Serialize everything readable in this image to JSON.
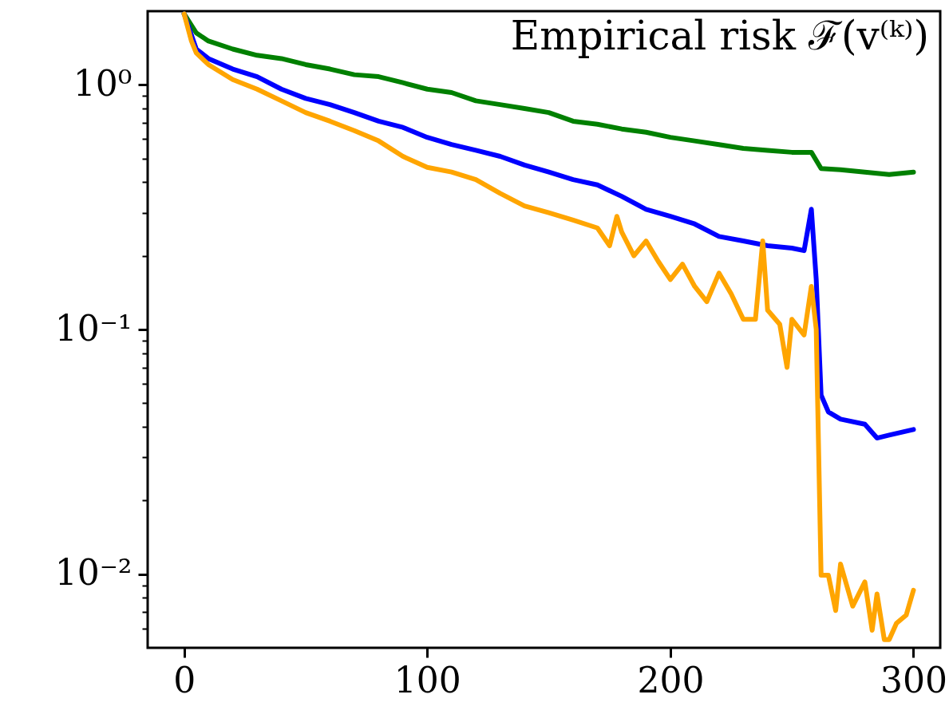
{
  "chart_data": {
    "type": "line",
    "annotations": [
      "Empirical risk ℱ(v⁽ᵏ⁾)"
    ],
    "log": "y",
    "xlim": [
      -15,
      311
    ],
    "ylim": [
      0.005,
      2
    ],
    "xticks": [
      0,
      100,
      200,
      300
    ],
    "yticks": [
      {
        "value": 1,
        "label": "10⁰"
      },
      {
        "value": 0.1,
        "label": "10⁻¹"
      },
      {
        "value": 0.01,
        "label": "10⁻²"
      },
      {
        "value": 0.9,
        "label": null
      },
      {
        "value": 0.8,
        "label": null
      },
      {
        "value": 0.7,
        "label": null
      },
      {
        "value": 0.6,
        "label": null
      },
      {
        "value": 0.5,
        "label": null
      },
      {
        "value": 0.4,
        "label": null
      },
      {
        "value": 0.3,
        "label": null
      },
      {
        "value": 0.2,
        "label": null
      },
      {
        "value": 0.09,
        "label": null
      },
      {
        "value": 0.08,
        "label": null
      },
      {
        "value": 0.07,
        "label": null
      },
      {
        "value": 0.06,
        "label": null
      },
      {
        "value": 0.05,
        "label": null
      },
      {
        "value": 0.04,
        "label": null
      },
      {
        "value": 0.03,
        "label": null
      },
      {
        "value": 0.02,
        "label": null
      },
      {
        "value": 0.009,
        "label": null
      },
      {
        "value": 0.008,
        "label": null
      },
      {
        "value": 0.007,
        "label": null
      },
      {
        "value": 0.006,
        "label": null
      }
    ],
    "grid": false,
    "line_style": "solid",
    "marker": "none",
    "series": [
      {
        "color": "#008000",
        "x": [
          0,
          5,
          10,
          20,
          30,
          40,
          50,
          60,
          70,
          80,
          90,
          100,
          110,
          120,
          130,
          140,
          150,
          160,
          170,
          180,
          190,
          200,
          210,
          220,
          230,
          240,
          250,
          258,
          262,
          270,
          280,
          290,
          300
        ],
        "values": [
          1.95,
          1.63,
          1.51,
          1.4,
          1.32,
          1.28,
          1.21,
          1.16,
          1.1,
          1.08,
          1.02,
          0.96,
          0.93,
          0.86,
          0.83,
          0.8,
          0.77,
          0.71,
          0.69,
          0.66,
          0.64,
          0.61,
          0.59,
          0.57,
          0.55,
          0.54,
          0.53,
          0.53,
          0.455,
          0.45,
          0.44,
          0.43,
          0.44
        ]
      },
      {
        "color": "#0000ff",
        "x": [
          0,
          5,
          10,
          20,
          30,
          40,
          50,
          60,
          70,
          80,
          90,
          100,
          110,
          120,
          130,
          140,
          150,
          160,
          170,
          180,
          190,
          200,
          210,
          220,
          230,
          240,
          250,
          255,
          258,
          260,
          262,
          265,
          270,
          280,
          285,
          290,
          300
        ],
        "values": [
          1.95,
          1.4,
          1.28,
          1.16,
          1.08,
          0.96,
          0.88,
          0.83,
          0.77,
          0.71,
          0.67,
          0.61,
          0.57,
          0.54,
          0.51,
          0.47,
          0.44,
          0.41,
          0.39,
          0.35,
          0.31,
          0.29,
          0.27,
          0.24,
          0.23,
          0.22,
          0.215,
          0.21,
          0.31,
          0.16,
          0.054,
          0.046,
          0.043,
          0.041,
          0.036,
          0.037,
          0.039
        ]
      },
      {
        "color": "#ffa500",
        "x": [
          0,
          3,
          5,
          10,
          20,
          30,
          40,
          50,
          60,
          70,
          80,
          90,
          100,
          110,
          120,
          130,
          140,
          150,
          160,
          170,
          175,
          178,
          180,
          185,
          190,
          195,
          200,
          205,
          210,
          215,
          220,
          225,
          230,
          235,
          238,
          240,
          245,
          248,
          250,
          255,
          258,
          260,
          262,
          265,
          268,
          270,
          275,
          280,
          283,
          285,
          288,
          290,
          293,
          297,
          300
        ],
        "values": [
          1.95,
          1.51,
          1.35,
          1.21,
          1.05,
          0.96,
          0.86,
          0.77,
          0.71,
          0.65,
          0.59,
          0.51,
          0.46,
          0.44,
          0.41,
          0.36,
          0.32,
          0.3,
          0.28,
          0.26,
          0.22,
          0.29,
          0.25,
          0.2,
          0.23,
          0.19,
          0.16,
          0.185,
          0.15,
          0.13,
          0.17,
          0.14,
          0.11,
          0.11,
          0.23,
          0.12,
          0.105,
          0.07,
          0.11,
          0.095,
          0.15,
          0.1,
          0.0099,
          0.0099,
          0.0071,
          0.011,
          0.0074,
          0.0093,
          0.0059,
          0.0083,
          0.0054,
          0.0054,
          0.0063,
          0.0068,
          0.0086
        ]
      }
    ]
  }
}
